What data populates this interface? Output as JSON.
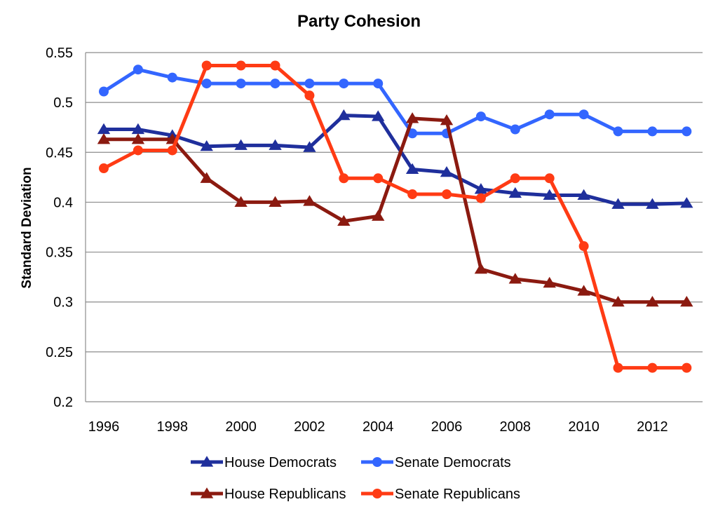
{
  "chart_data": {
    "type": "line",
    "title": "Party Cohesion",
    "xlabel": "",
    "ylabel": "Standard Deviation",
    "x": [
      1996,
      1997,
      1998,
      1999,
      2000,
      2001,
      2002,
      2003,
      2004,
      2005,
      2006,
      2007,
      2008,
      2009,
      2010,
      2011,
      2012,
      2013
    ],
    "x_tick_labels": [
      "1996",
      "1998",
      "2000",
      "2002",
      "2004",
      "2006",
      "2008",
      "2010",
      "2012"
    ],
    "y_tick_labels": [
      "0.2",
      "0.25",
      "0.3",
      "0.35",
      "0.4",
      "0.45",
      "0.5",
      "0.55"
    ],
    "ylim": [
      0.2,
      0.55
    ],
    "xlim": [
      1996,
      2013
    ],
    "grid": true,
    "legend_position": "bottom",
    "series": [
      {
        "name": "House Democrats",
        "color": "#1f2f9c",
        "marker": "triangle",
        "values": [
          0.473,
          0.473,
          0.467,
          0.456,
          0.457,
          0.457,
          0.455,
          0.487,
          0.486,
          0.433,
          0.43,
          0.413,
          0.409,
          0.407,
          0.407,
          0.398,
          0.398,
          0.399
        ]
      },
      {
        "name": "Senate Democrats",
        "color": "#3366ff",
        "marker": "circle",
        "values": [
          0.511,
          0.533,
          0.525,
          0.519,
          0.519,
          0.519,
          0.519,
          0.519,
          0.519,
          0.469,
          0.469,
          0.486,
          0.473,
          0.488,
          0.488,
          0.471,
          0.471,
          0.471
        ]
      },
      {
        "name": "House Republicans",
        "color": "#8b1a10",
        "marker": "triangle",
        "values": [
          0.463,
          0.463,
          0.463,
          0.424,
          0.4,
          0.4,
          0.401,
          0.381,
          0.386,
          0.484,
          0.482,
          0.333,
          0.323,
          0.319,
          0.311,
          0.3,
          0.3,
          0.3
        ]
      },
      {
        "name": "Senate Republicans",
        "color": "#ff3b14",
        "marker": "circle",
        "values": [
          0.434,
          0.452,
          0.452,
          0.537,
          0.537,
          0.537,
          0.507,
          0.424,
          0.424,
          0.408,
          0.408,
          0.404,
          0.424,
          0.424,
          0.356,
          0.234,
          0.234,
          0.234
        ]
      }
    ]
  }
}
